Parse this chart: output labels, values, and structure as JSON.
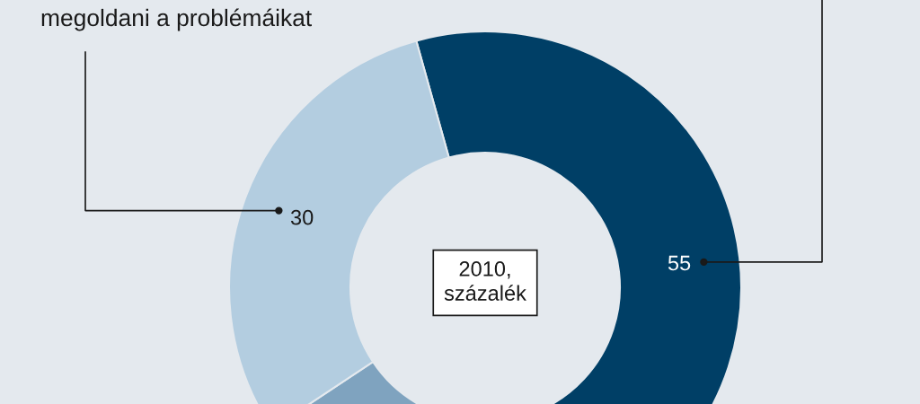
{
  "chart_data": {
    "type": "donut",
    "categories": [
      null,
      null,
      "megoldani a problémáikat"
    ],
    "values": [
      55,
      15,
      30
    ],
    "colors": [
      "#003f66",
      "#7fa3bf",
      "#b3cde0"
    ],
    "value_labels": [
      "55",
      null,
      "30"
    ],
    "annotations": [
      "2010,\nszázalék"
    ]
  }
}
